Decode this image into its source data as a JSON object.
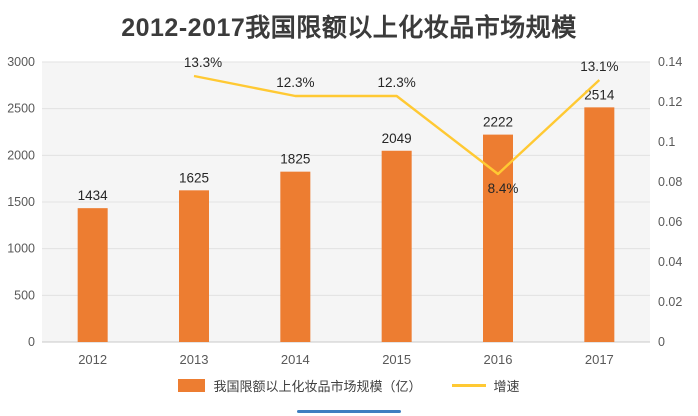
{
  "title": "2012-2017我国限额以上化妆品市场规模",
  "legend": {
    "bar_label": "我国限额以上化妆品市场规模（亿）",
    "line_label": "增速"
  },
  "chart_data": {
    "type": "bar",
    "subtype": "bar-line combo with dual value axes",
    "categories": [
      "2012",
      "2013",
      "2014",
      "2015",
      "2016",
      "2017"
    ],
    "series": [
      {
        "name": "我国限额以上化妆品市场规模（亿）",
        "type": "bar",
        "axis": "left",
        "values": [
          1434,
          1625,
          1825,
          2049,
          2222,
          2514
        ],
        "color": "#ED7D31"
      },
      {
        "name": "增速",
        "type": "line",
        "axis": "right",
        "values": [
          null,
          0.133,
          0.123,
          0.123,
          0.084,
          0.131
        ],
        "point_labels": [
          "",
          "13.3%",
          "12.3%",
          "12.3%",
          "8.4%",
          "13.1%"
        ],
        "label_side": [
          "",
          "above",
          "above",
          "above",
          "below",
          "above"
        ],
        "label_dx": [
          0,
          9,
          0,
          0,
          5,
          0
        ],
        "color": "#FFC933"
      }
    ],
    "left_axis": {
      "min": 0,
      "max": 3000,
      "step": 500,
      "ticks": [
        "0",
        "500",
        "1000",
        "1500",
        "2000",
        "2500",
        "3000"
      ]
    },
    "right_axis": {
      "min": 0,
      "max": 0.14,
      "step": 0.02,
      "ticks": [
        "0",
        "0.02",
        "0.04",
        "0.06",
        "0.08",
        "0.1",
        "0.12",
        "0.14"
      ]
    },
    "grid": true,
    "legend_position": "bottom"
  },
  "colors": {
    "bar": "#ED7D31",
    "line": "#FFC933",
    "title_text": "#3b3b3b",
    "axis_text": "#595959",
    "value_label_text": "#262626",
    "grid": "#e2e2e2",
    "axis_line": "#c9c9c9",
    "plot_bg": "#f5f5f5",
    "page_bg": "#ffffff",
    "accent_line": "#3f7ec0"
  }
}
